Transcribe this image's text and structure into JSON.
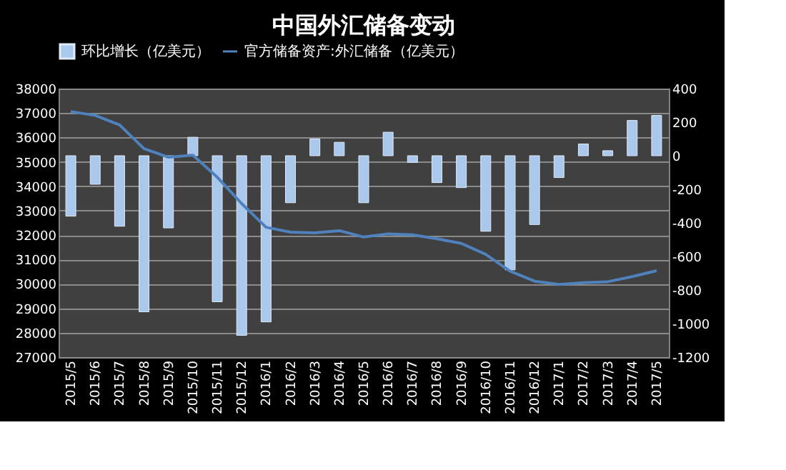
{
  "chart_data": {
    "type": "bar",
    "title": "中国外汇储备变动",
    "categories": [
      "2015/5",
      "2015/6",
      "2015/7",
      "2015/8",
      "2015/9",
      "2015/10",
      "2015/11",
      "2015/12",
      "2016/1",
      "2016/2",
      "2016/3",
      "2016/4",
      "2016/5",
      "2016/6",
      "2016/7",
      "2016/8",
      "2016/9",
      "2016/10",
      "2016/11",
      "2016/12",
      "2017/1",
      "2017/2",
      "2017/3",
      "2017/4",
      "2017/5"
    ],
    "series": [
      {
        "name": "环比增长（亿美元）",
        "axis": "y2",
        "color": "#a9c8ec",
        "values": [
          -360,
          -170,
          -420,
          -930,
          -430,
          110,
          -870,
          -1070,
          -990,
          -280,
          100,
          80,
          -280,
          140,
          -40,
          -160,
          -190,
          -450,
          -680,
          -410,
          -130,
          70,
          30,
          210,
          240
        ]
      },
      {
        "name": "官方储备资产:外汇储备（亿美元）",
        "type": "line",
        "color": "#4f81bd",
        "values": [
          37060,
          36900,
          36510,
          35540,
          35190,
          35270,
          34370,
          33290,
          32320,
          32120,
          32090,
          32180,
          31920,
          32050,
          32010,
          31850,
          31660,
          31210,
          30520,
          30110,
          29980,
          30050,
          30090,
          30300,
          30540
        ]
      }
    ],
    "ylim": [
      27000,
      38000
    ],
    "yticks": [
      27000,
      28000,
      29000,
      30000,
      31000,
      32000,
      33000,
      34000,
      35000,
      36000,
      37000,
      38000
    ],
    "y2lim": [
      -1200,
      400
    ],
    "y2ticks": [
      -1200,
      -1000,
      -800,
      -600,
      -400,
      -200,
      0,
      200,
      400
    ],
    "grid": "y",
    "legend": "top"
  }
}
